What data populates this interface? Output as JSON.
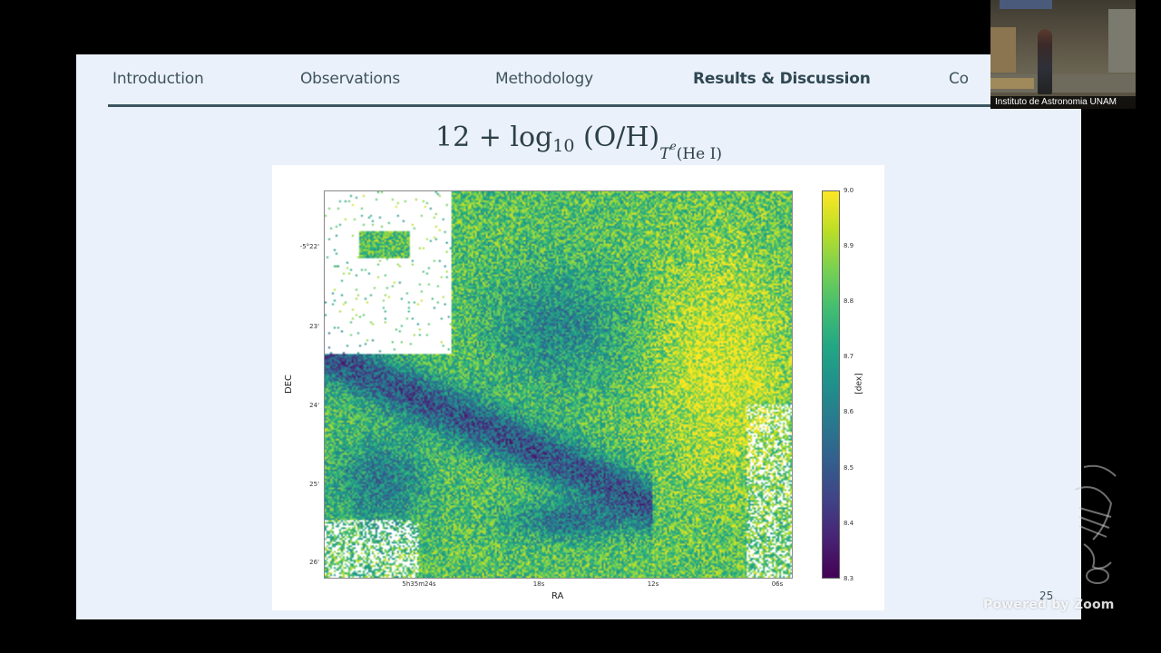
{
  "nav": {
    "items": [
      {
        "label": "Introduction",
        "active": false
      },
      {
        "label": "Observations",
        "active": false
      },
      {
        "label": "Methodology",
        "active": false
      },
      {
        "label": "Results & Discussion",
        "active": true
      },
      {
        "label": "Co",
        "active": false
      }
    ]
  },
  "slide": {
    "title_main": "12 + log",
    "title_sub": "10",
    "title_paren": " (O/H)",
    "title_sub_T": "T",
    "title_sub_e": "e",
    "title_sub_rest": "(He I)",
    "page_number": "25"
  },
  "webcam": {
    "label": "Instituto de Astronomia UNAM"
  },
  "zoom_brand": "Powered by Zoom",
  "chart_data": {
    "type": "heatmap",
    "title": "12 + log10 (O/H)_Te(He I)",
    "xlabel": "RA",
    "ylabel": "DEC",
    "x_ticks": [
      "5h35m24s",
      "18s",
      "12s",
      "06s"
    ],
    "y_ticks": [
      "-5°22'",
      "23'",
      "24'",
      "25'",
      "26'"
    ],
    "colorbar": {
      "label": "[dex]",
      "colormap": "viridis",
      "range": [
        8.3,
        9.0
      ],
      "ticks": [
        "9.0",
        "8.9",
        "8.8",
        "8.7",
        "8.6",
        "8.5",
        "8.4",
        "8.3"
      ]
    },
    "description": "Spatial map of oxygen abundance; low values (8.3-8.5, purple/blue) along a diagonal dark band from left-center to lower-center, high values (8.8-9.0, yellow) toward right and upper regions; white (no data) region in upper-left."
  }
}
